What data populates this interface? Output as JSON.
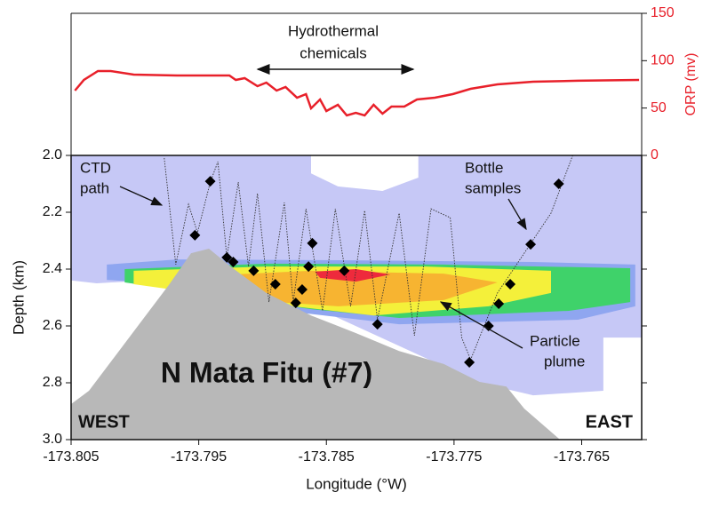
{
  "chart_data": [
    {
      "type": "line",
      "xlim": [
        -173.805,
        -173.7603
      ],
      "y2lim": [
        0,
        150
      ],
      "y2ticks": [
        0,
        50,
        100,
        150
      ],
      "y2label": "ORP (mv)",
      "axis_color": "#e8202a",
      "annotation": {
        "text": [
          "Hydrothermal",
          "chemicals"
        ]
      },
      "series": [
        {
          "color": "#e8202a",
          "axis": "y2",
          "x": [
            -173.8047,
            -173.804,
            -173.8029,
            -173.8019,
            -173.8001,
            -173.7967,
            -173.7926,
            -173.7921,
            -173.7914,
            -173.7904,
            -173.7897,
            -173.7889,
            -173.7882,
            -173.7873,
            -173.7866,
            -173.7862,
            -173.7855,
            -173.785,
            -173.7841,
            -173.7834,
            -173.7827,
            -173.782,
            -173.7813,
            -173.7806,
            -173.7799,
            -173.7789,
            -173.7779,
            -173.7765,
            -173.7751,
            -173.7737,
            -173.7716,
            -173.7688,
            -173.7653,
            -173.7605
          ],
          "values": [
            68.4,
            79.7,
            89.1,
            89.1,
            85.3,
            84.4,
            84.4,
            79.7,
            81.6,
            73.1,
            76.9,
            68.4,
            72.2,
            60.9,
            64.7,
            49.7,
            59.1,
            46.9,
            53.4,
            42.2,
            45,
            42.2,
            53.4,
            44.1,
            51.6,
            51.6,
            59.1,
            60.9,
            64.7,
            70.3,
            75,
            77.8,
            78.8,
            79.7
          ]
        }
      ]
    },
    {
      "type": "section",
      "xlim": [
        -173.805,
        -173.7603
      ],
      "ylim": [
        2,
        3
      ],
      "y_inverted": true,
      "xticks": [
        -173.805,
        -173.795,
        -173.785,
        -173.775,
        -173.765
      ],
      "yticks": [
        {
          "value": 2,
          "label": "2.0"
        },
        2.2,
        2.4,
        2.6,
        2.8,
        {
          "value": 3,
          "label": "3.0"
        }
      ],
      "xlabel": "Longitude (°W)",
      "ylabel": "Depth (km)",
      "contours": [
        {
          "color": "#c6c8f6",
          "x": [
            -173.805,
            -173.7862,
            -173.7862,
            -173.7841,
            -173.7806,
            -173.7778,
            -173.7778,
            -173.7603,
            -173.7603,
            -173.7633,
            -173.7633,
            -173.7688,
            -173.773,
            -173.79,
            -173.799,
            -173.803,
            -173.805
          ],
          "depth": [
            2.0,
            2.0,
            2.063,
            2.109,
            2.125,
            2.078,
            2.0,
            2.0,
            2.641,
            2.641,
            2.828,
            2.844,
            2.8,
            2.45,
            2.44,
            2.45,
            2.44
          ]
        },
        {
          "color": "#8fa6f0",
          "x": [
            -173.8022,
            -173.7967,
            -173.7827,
            -173.7688,
            -173.7608,
            -173.7608,
            -173.7653,
            -173.7793,
            -173.7883,
            -173.7967,
            -173.8022
          ],
          "depth": [
            2.384,
            2.366,
            2.369,
            2.375,
            2.384,
            2.531,
            2.578,
            2.594,
            2.547,
            2.453,
            2.438
          ]
        },
        {
          "color": "#3fd26a",
          "x": [
            -173.8008,
            -173.7897,
            -173.7758,
            -173.7612,
            -173.7612,
            -173.766,
            -173.7793,
            -173.7862,
            -173.8008
          ],
          "depth": [
            2.4,
            2.381,
            2.384,
            2.397,
            2.516,
            2.547,
            2.572,
            2.541,
            2.447
          ]
        },
        {
          "color": "#f4f03a",
          "x": [
            -173.8001,
            -173.7897,
            -173.7772,
            -173.7674,
            -173.7674,
            -173.7723,
            -173.7813,
            -173.7876,
            -173.8001
          ],
          "depth": [
            2.406,
            2.391,
            2.391,
            2.406,
            2.484,
            2.531,
            2.563,
            2.531,
            2.453
          ]
        },
        {
          "color": "#f7b431",
          "x": [
            -173.7967,
            -173.7862,
            -173.7758,
            -173.7716,
            -173.7758,
            -173.7841,
            -173.7911,
            -173.7967
          ],
          "depth": [
            2.428,
            2.406,
            2.416,
            2.447,
            2.509,
            2.531,
            2.509,
            2.469
          ]
        },
        {
          "color": "#ee2a3c",
          "x": [
            -173.7859,
            -173.7827,
            -173.78,
            -173.7827,
            -173.7855
          ],
          "depth": [
            2.409,
            2.4,
            2.419,
            2.444,
            2.431
          ]
        }
      ],
      "seafloor": {
        "color": "#b8b8b8",
        "x": [
          -173.805,
          -173.8036,
          -173.8015,
          -173.7994,
          -173.7973,
          -173.7956,
          -173.7942,
          -173.7925,
          -173.7897,
          -173.7862,
          -173.7827,
          -173.7793,
          -173.7758,
          -173.773,
          -173.7709,
          -173.7695,
          -173.7667
        ],
        "depth": [
          2.875,
          2.828,
          2.703,
          2.578,
          2.453,
          2.344,
          2.328,
          2.391,
          2.484,
          2.563,
          2.625,
          2.688,
          2.734,
          2.797,
          2.813,
          2.891,
          3.0
        ]
      },
      "ctd_path": {
        "color": "#333333",
        "x": [
          -173.7977,
          -173.7968,
          -173.7958,
          -173.7951,
          -173.7941,
          -173.7935,
          -173.7928,
          -173.7919,
          -173.7911,
          -173.7904,
          -173.7895,
          -173.7883,
          -173.7876,
          -173.7866,
          -173.7853,
          -173.7843,
          -173.7831,
          -173.782,
          -173.781,
          -173.7793,
          -173.7781,
          -173.7768,
          -173.7753,
          -173.7744,
          -173.7737,
          -173.7716,
          -173.7702,
          -173.7688,
          -173.7674,
          -173.7657
        ],
        "depth": [
          2.009,
          2.384,
          2.172,
          2.272,
          2.094,
          2.022,
          2.359,
          2.094,
          2.391,
          2.134,
          2.516,
          2.166,
          2.516,
          2.188,
          2.547,
          2.188,
          2.531,
          2.194,
          2.578,
          2.203,
          2.634,
          2.188,
          2.219,
          2.641,
          2.719,
          2.484,
          2.391,
          2.297,
          2.203,
          2.0
        ]
      },
      "bottles": {
        "color": "#000000",
        "x": [
          -173.7953,
          -173.7941,
          -173.7928,
          -173.7923,
          -173.7907,
          -173.789,
          -173.7874,
          -173.7869,
          -173.7864,
          -173.7861,
          -173.7836,
          -173.781,
          -173.7738,
          -173.7723,
          -173.7715,
          -173.7706,
          -173.769,
          -173.7668
        ],
        "depth": [
          2.281,
          2.091,
          2.359,
          2.375,
          2.406,
          2.453,
          2.519,
          2.472,
          2.391,
          2.309,
          2.406,
          2.594,
          2.728,
          2.6,
          2.522,
          2.453,
          2.313,
          2.1
        ]
      },
      "annotations": [
        {
          "text": [
            "CTD",
            "path"
          ]
        },
        {
          "text": [
            "Bottle",
            "samples"
          ]
        },
        {
          "text": [
            "Particle",
            "plume"
          ]
        },
        {
          "text": [
            "N Mata Fitu (#7)"
          ]
        },
        {
          "text": [
            "WEST"
          ]
        },
        {
          "text": [
            "EAST"
          ]
        }
      ]
    }
  ]
}
